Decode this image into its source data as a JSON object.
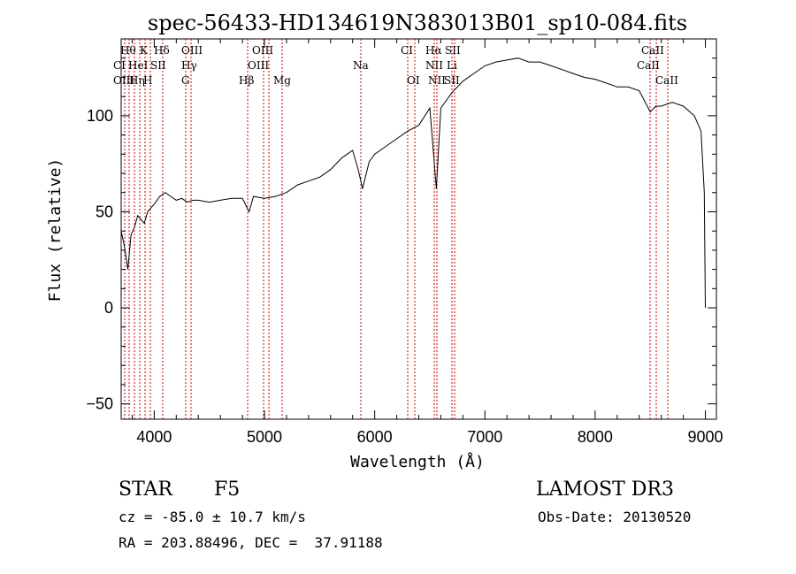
{
  "chart_data": {
    "type": "line",
    "title": "spec-56433-HD134619N383013B01_sp10-084.fits",
    "xlabel": "Wavelength (Å)",
    "ylabel": "Flux (relative)",
    "xlim": [
      3700,
      9100
    ],
    "ylim": [
      -58,
      140
    ],
    "xticks": [
      4000,
      5000,
      6000,
      7000,
      8000,
      9000
    ],
    "xtick_labels": [
      "4000",
      "5000",
      "6000",
      "7000",
      "8000",
      "9000"
    ],
    "yticks": [
      -50,
      0,
      50,
      100
    ],
    "ytick_labels": [
      "−50",
      "0",
      "50",
      "100"
    ],
    "series": [
      {
        "name": "flux",
        "x": [
          3700,
          3730,
          3760,
          3790,
          3820,
          3850,
          3880,
          3910,
          3940,
          3970,
          4000,
          4050,
          4100,
          4150,
          4200,
          4250,
          4300,
          4350,
          4400,
          4500,
          4600,
          4700,
          4800,
          4860,
          4900,
          5000,
          5100,
          5200,
          5300,
          5400,
          5500,
          5600,
          5700,
          5750,
          5800,
          5850,
          5890,
          5950,
          6000,
          6100,
          6200,
          6300,
          6400,
          6500,
          6560,
          6600,
          6650,
          6700,
          6800,
          6900,
          7000,
          7100,
          7200,
          7300,
          7400,
          7500,
          7600,
          7700,
          7800,
          7900,
          8000,
          8100,
          8200,
          8300,
          8400,
          8500,
          8550,
          8600,
          8700,
          8800,
          8900,
          8960,
          8990,
          9000
        ],
        "values": [
          40,
          32,
          20,
          38,
          42,
          48,
          46,
          44,
          50,
          52,
          54,
          58,
          60,
          58,
          56,
          57,
          55,
          56,
          56,
          55,
          56,
          57,
          57,
          50,
          58,
          57,
          58,
          60,
          64,
          66,
          68,
          72,
          78,
          80,
          82,
          72,
          62,
          76,
          80,
          84,
          88,
          92,
          95,
          104,
          62,
          104,
          108,
          112,
          118,
          122,
          126,
          128,
          129,
          130,
          128,
          128,
          126,
          124,
          122,
          120,
          119,
          117,
          115,
          115,
          113,
          102,
          105,
          105,
          107,
          105,
          100,
          92,
          60,
          0
        ]
      }
    ],
    "annotations": {
      "row1": [
        "Hθ",
        "K",
        "Hδ",
        "OIII",
        "OIII",
        "CI",
        "Hα",
        "SII",
        "CaII"
      ],
      "row2": [
        "CI",
        "HeI",
        "SII",
        "Hγ",
        "OIII",
        "Na",
        "NII",
        "Li",
        "CaII"
      ],
      "row3": [
        "OIII",
        "Hη",
        "H",
        "G",
        "Hβ",
        "Mg",
        "OI",
        "NII",
        "SII",
        "CaII"
      ]
    }
  },
  "info": {
    "object_class": "STAR",
    "subclass": "F5",
    "survey": "LAMOST DR3",
    "cz": "cz = -85.0 ± 10.7 km/s",
    "obs_date": "Obs-Date: 20130520",
    "coords": "RA = 203.88496, DEC =  37.91188"
  },
  "colors": {
    "spectrum": "#000000",
    "line_markers": "#cc0000",
    "background": "#ffffff"
  }
}
